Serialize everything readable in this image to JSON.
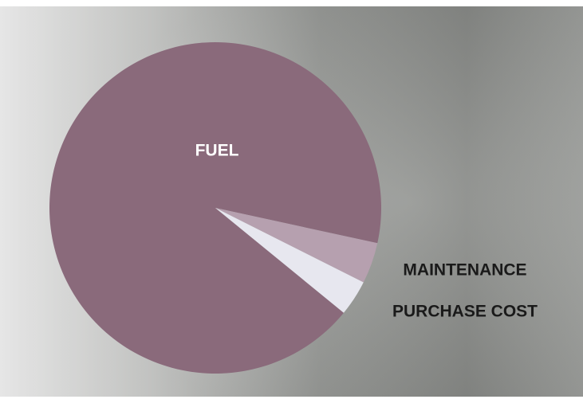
{
  "chart_data": {
    "type": "pie",
    "categories": [
      "FUEL",
      "MAINTENANCE",
      "PURCHASE COST"
    ],
    "values": [
      92.5,
      4,
      3.5
    ],
    "colors": [
      "#8a6a7b",
      "#b6a0af",
      "#e7e7ef"
    ]
  }
}
